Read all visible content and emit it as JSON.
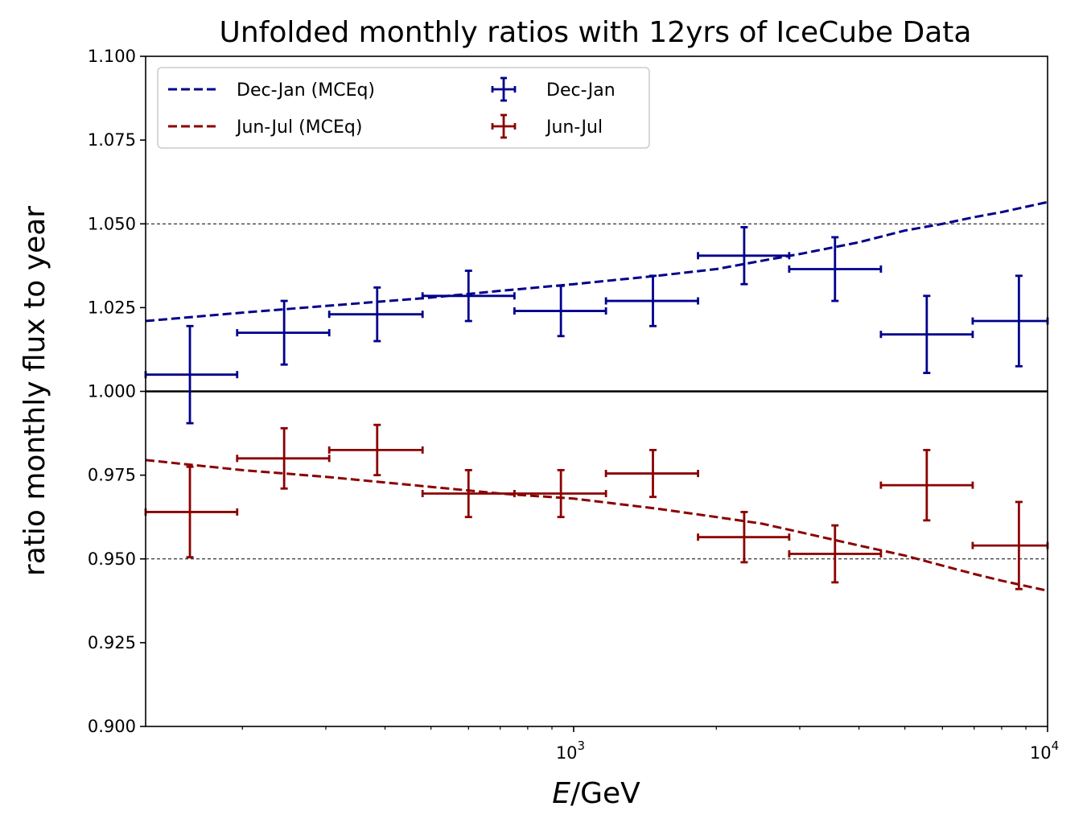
{
  "chart_data": {
    "type": "scatter",
    "title": "Unfolded monthly ratios with 12yrs of IceCube Data",
    "xlabel_italic": "E",
    "xlabel_rest": "/GeV",
    "ylabel": "ratio monthly flux to year",
    "xscale": "log",
    "xlim": [
      125,
      10000
    ],
    "ylim": [
      0.9,
      1.1
    ],
    "yticks": [
      {
        "value": 0.9,
        "label": "0.900"
      },
      {
        "value": 0.925,
        "label": "0.925"
      },
      {
        "value": 0.95,
        "label": "0.950"
      },
      {
        "value": 0.975,
        "label": "0.975"
      },
      {
        "value": 1.0,
        "label": "1.000"
      },
      {
        "value": 1.025,
        "label": "1.025"
      },
      {
        "value": 1.05,
        "label": "1.050"
      },
      {
        "value": 1.075,
        "label": "1.075"
      },
      {
        "value": 1.1,
        "label": "1.100"
      }
    ],
    "xticks_major": [
      {
        "value": 1000,
        "base": "10",
        "exp": "3"
      },
      {
        "value": 10000,
        "base": "10",
        "exp": "4"
      }
    ],
    "xticks_minor": [
      200,
      300,
      400,
      500,
      600,
      700,
      800,
      900,
      2000,
      3000,
      4000,
      5000,
      6000,
      7000,
      8000,
      9000
    ],
    "reference_lines": [
      {
        "y": 1.0,
        "style": "solid"
      },
      {
        "y": 1.05,
        "style": "dotted"
      },
      {
        "y": 0.95,
        "style": "dotted"
      }
    ],
    "bins": [
      {
        "lo": 125,
        "hi": 195,
        "x": 155
      },
      {
        "lo": 195,
        "hi": 305,
        "x": 245
      },
      {
        "lo": 305,
        "hi": 480,
        "x": 385
      },
      {
        "lo": 480,
        "hi": 750,
        "x": 600
      },
      {
        "lo": 750,
        "hi": 1170,
        "x": 940
      },
      {
        "lo": 1170,
        "hi": 1830,
        "x": 1470
      },
      {
        "lo": 1830,
        "hi": 2850,
        "x": 2290
      },
      {
        "lo": 2850,
        "hi": 4450,
        "x": 3560
      },
      {
        "lo": 4450,
        "hi": 6950,
        "x": 5560
      },
      {
        "lo": 6950,
        "hi": 10000,
        "x": 8700
      }
    ],
    "series": [
      {
        "name": "Dec-Jan",
        "color": "#00008b",
        "values": [
          1.005,
          1.0175,
          1.023,
          1.0285,
          1.024,
          1.027,
          1.0405,
          1.0365,
          1.017,
          1.021
        ],
        "errors": [
          0.0145,
          0.0095,
          0.008,
          0.0075,
          0.0075,
          0.0075,
          0.0085,
          0.0095,
          0.0115,
          0.0135
        ]
      },
      {
        "name": "Jun-Jul",
        "color": "#8b0000",
        "values": [
          0.964,
          0.98,
          0.9825,
          0.9695,
          0.9695,
          0.9755,
          0.9565,
          0.9515,
          0.972,
          0.954
        ],
        "errors": [
          0.0135,
          0.009,
          0.0075,
          0.007,
          0.007,
          0.007,
          0.0075,
          0.0085,
          0.0105,
          0.013
        ]
      }
    ],
    "model_series": [
      {
        "name": "Dec-Jan (MCEq)",
        "color": "#00008b",
        "x": [
          125,
          200,
          300,
          500,
          700,
          1000,
          1500,
          2000,
          2500,
          3000,
          4000,
          5000,
          6000,
          7000,
          8000,
          10000
        ],
        "y": [
          1.021,
          1.0235,
          1.0255,
          1.028,
          1.03,
          1.032,
          1.0345,
          1.0365,
          1.039,
          1.041,
          1.0445,
          1.048,
          1.05,
          1.052,
          1.0535,
          1.0565
        ]
      },
      {
        "name": "Jun-Jul (MCEq)",
        "color": "#8b0000",
        "x": [
          125,
          200,
          300,
          500,
          700,
          1000,
          1500,
          2000,
          2500,
          3000,
          4000,
          5000,
          6000,
          7000,
          8000,
          10000
        ],
        "y": [
          0.9795,
          0.9765,
          0.9745,
          0.9715,
          0.9695,
          0.968,
          0.965,
          0.9625,
          0.9605,
          0.958,
          0.954,
          0.951,
          0.948,
          0.9455,
          0.9435,
          0.9405
        ]
      }
    ],
    "legend": {
      "position": "top-left",
      "entries": [
        {
          "label": "Dec-Jan (MCEq)",
          "kind": "dashed",
          "color": "#00008b"
        },
        {
          "label": "Jun-Jul (MCEq)",
          "kind": "dashed",
          "color": "#8b0000"
        },
        {
          "label": "Dec-Jan",
          "kind": "errorbar",
          "color": "#00008b"
        },
        {
          "label": "Jun-Jul",
          "kind": "errorbar",
          "color": "#8b0000"
        }
      ]
    }
  }
}
